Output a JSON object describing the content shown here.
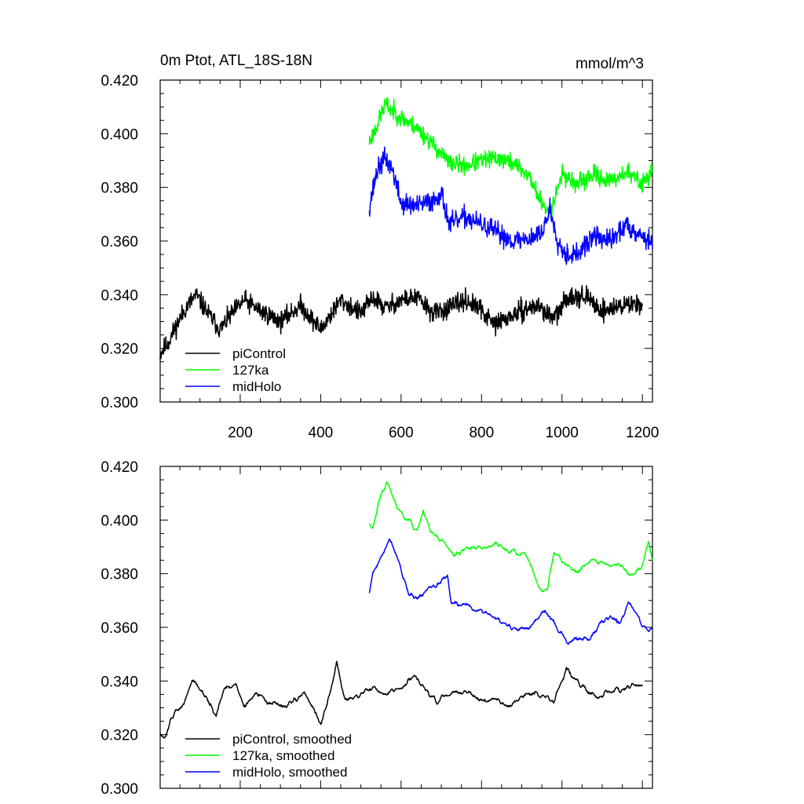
{
  "figure": {
    "top_title_left": "0m Ptot, ATL_18S-18N",
    "top_title_right": "mmol/m^3"
  },
  "chart_data": [
    {
      "type": "line",
      "panel": "top",
      "title": "0m Ptot, ATL_18S-18N",
      "units": "mmol/m^3",
      "xlim": [
        1,
        1225
      ],
      "ylim": [
        0.3,
        0.42
      ],
      "yticks": [
        "0.420",
        "0.400",
        "0.380",
        "0.360",
        "0.340",
        "0.320",
        "0.300"
      ],
      "xticks": [
        "200",
        "400",
        "600",
        "800",
        "1000",
        "1200"
      ],
      "legend_position": "bottom-left",
      "series": [
        {
          "name": "piControl",
          "color": "#000000",
          "x_start": 1,
          "x_end": 1200,
          "anchors": [
            [
              1,
              0.318
            ],
            [
              20,
              0.322
            ],
            [
              60,
              0.334
            ],
            [
              90,
              0.34
            ],
            [
              120,
              0.333
            ],
            [
              150,
              0.327
            ],
            [
              180,
              0.333
            ],
            [
              210,
              0.338
            ],
            [
              250,
              0.334
            ],
            [
              300,
              0.33
            ],
            [
              350,
              0.336
            ],
            [
              400,
              0.327
            ],
            [
              450,
              0.338
            ],
            [
              500,
              0.333
            ],
            [
              530,
              0.339
            ],
            [
              560,
              0.335
            ],
            [
              600,
              0.338
            ],
            [
              640,
              0.339
            ],
            [
              680,
              0.333
            ],
            [
              720,
              0.335
            ],
            [
              760,
              0.338
            ],
            [
              800,
              0.334
            ],
            [
              830,
              0.329
            ],
            [
              860,
              0.331
            ],
            [
              900,
              0.334
            ],
            [
              940,
              0.336
            ],
            [
              980,
              0.331
            ],
            [
              1020,
              0.34
            ],
            [
              1060,
              0.339
            ],
            [
              1100,
              0.334
            ],
            [
              1150,
              0.336
            ],
            [
              1200,
              0.337
            ]
          ],
          "noise": 0.0055,
          "smooth": 1,
          "seed": 11
        },
        {
          "name": "127ka",
          "color": "#00ff00",
          "x_start": 521,
          "x_end": 1225,
          "anchors": [
            [
              521,
              0.397
            ],
            [
              540,
              0.403
            ],
            [
              560,
              0.411
            ],
            [
              600,
              0.406
            ],
            [
              640,
              0.402
            ],
            [
              680,
              0.396
            ],
            [
              720,
              0.389
            ],
            [
              760,
              0.388
            ],
            [
              800,
              0.39
            ],
            [
              840,
              0.391
            ],
            [
              880,
              0.389
            ],
            [
              920,
              0.384
            ],
            [
              940,
              0.377
            ],
            [
              960,
              0.371
            ],
            [
              975,
              0.373
            ],
            [
              1000,
              0.385
            ],
            [
              1040,
              0.381
            ],
            [
              1080,
              0.385
            ],
            [
              1120,
              0.382
            ],
            [
              1160,
              0.386
            ],
            [
              1200,
              0.381
            ],
            [
              1225,
              0.387
            ]
          ],
          "noise": 0.005,
          "smooth": 1,
          "seed": 23
        },
        {
          "name": "midHolo",
          "color": "#0000ff",
          "x_start": 521,
          "x_end": 1225,
          "anchors": [
            [
              521,
              0.373
            ],
            [
              540,
              0.386
            ],
            [
              560,
              0.391
            ],
            [
              580,
              0.386
            ],
            [
              600,
              0.374
            ],
            [
              640,
              0.373
            ],
            [
              680,
              0.375
            ],
            [
              700,
              0.378
            ],
            [
              720,
              0.366
            ],
            [
              760,
              0.369
            ],
            [
              800,
              0.366
            ],
            [
              840,
              0.363
            ],
            [
              880,
              0.36
            ],
            [
              920,
              0.361
            ],
            [
              950,
              0.363
            ],
            [
              970,
              0.372
            ],
            [
              990,
              0.36
            ],
            [
              1010,
              0.355
            ],
            [
              1040,
              0.355
            ],
            [
              1080,
              0.362
            ],
            [
              1120,
              0.36
            ],
            [
              1160,
              0.366
            ],
            [
              1200,
              0.362
            ],
            [
              1225,
              0.359
            ]
          ],
          "noise": 0.0058,
          "smooth": 1,
          "seed": 37
        }
      ]
    },
    {
      "type": "line",
      "panel": "bottom",
      "xlim": [
        1,
        1225
      ],
      "ylim": [
        0.3,
        0.42
      ],
      "yticks": [
        "0.420",
        "0.400",
        "0.380",
        "0.360",
        "0.340",
        "0.320",
        "0.300"
      ],
      "legend_position": "bottom-left",
      "series": [
        {
          "name": "piControl, smoothed",
          "color": "#000000",
          "x_start": 1,
          "x_end": 1200,
          "anchors": [
            [
              1,
              0.32
            ],
            [
              10,
              0.318
            ],
            [
              30,
              0.327
            ],
            [
              60,
              0.331
            ],
            [
              80,
              0.341
            ],
            [
              100,
              0.337
            ],
            [
              120,
              0.333
            ],
            [
              140,
              0.327
            ],
            [
              160,
              0.337
            ],
            [
              190,
              0.339
            ],
            [
              210,
              0.33
            ],
            [
              240,
              0.335
            ],
            [
              280,
              0.331
            ],
            [
              310,
              0.331
            ],
            [
              340,
              0.333
            ],
            [
              360,
              0.336
            ],
            [
              380,
              0.33
            ],
            [
              400,
              0.324
            ],
            [
              420,
              0.333
            ],
            [
              440,
              0.347
            ],
            [
              460,
              0.333
            ],
            [
              490,
              0.334
            ],
            [
              530,
              0.338
            ],
            [
              560,
              0.335
            ],
            [
              600,
              0.337
            ],
            [
              630,
              0.342
            ],
            [
              660,
              0.337
            ],
            [
              690,
              0.332
            ],
            [
              720,
              0.335
            ],
            [
              760,
              0.336
            ],
            [
              800,
              0.333
            ],
            [
              840,
              0.333
            ],
            [
              870,
              0.33
            ],
            [
              900,
              0.334
            ],
            [
              940,
              0.336
            ],
            [
              980,
              0.332
            ],
            [
              1010,
              0.344
            ],
            [
              1040,
              0.34
            ],
            [
              1080,
              0.334
            ],
            [
              1120,
              0.336
            ],
            [
              1160,
              0.337
            ],
            [
              1200,
              0.339
            ]
          ],
          "noise": 0.0022,
          "smooth": 3,
          "seed": 51
        },
        {
          "name": "127ka, smoothed",
          "color": "#00ff00",
          "x_start": 521,
          "x_end": 1225,
          "anchors": [
            [
              521,
              0.398
            ],
            [
              530,
              0.397
            ],
            [
              545,
              0.408
            ],
            [
              565,
              0.414
            ],
            [
              590,
              0.405
            ],
            [
              610,
              0.401
            ],
            [
              625,
              0.4
            ],
            [
              640,
              0.396
            ],
            [
              655,
              0.404
            ],
            [
              670,
              0.397
            ],
            [
              690,
              0.394
            ],
            [
              710,
              0.391
            ],
            [
              730,
              0.387
            ],
            [
              760,
              0.389
            ],
            [
              800,
              0.39
            ],
            [
              840,
              0.391
            ],
            [
              870,
              0.388
            ],
            [
              900,
              0.388
            ],
            [
              920,
              0.384
            ],
            [
              935,
              0.378
            ],
            [
              950,
              0.373
            ],
            [
              965,
              0.375
            ],
            [
              980,
              0.388
            ],
            [
              1000,
              0.385
            ],
            [
              1040,
              0.381
            ],
            [
              1080,
              0.386
            ],
            [
              1100,
              0.384
            ],
            [
              1120,
              0.383
            ],
            [
              1140,
              0.384
            ],
            [
              1170,
              0.379
            ],
            [
              1200,
              0.383
            ],
            [
              1215,
              0.392
            ],
            [
              1225,
              0.385
            ]
          ],
          "noise": 0.002,
          "smooth": 3,
          "seed": 63
        },
        {
          "name": "midHolo, smoothed",
          "color": "#0000ff",
          "x_start": 521,
          "x_end": 1225,
          "anchors": [
            [
              521,
              0.373
            ],
            [
              530,
              0.381
            ],
            [
              550,
              0.386
            ],
            [
              570,
              0.393
            ],
            [
              590,
              0.387
            ],
            [
              605,
              0.378
            ],
            [
              620,
              0.373
            ],
            [
              640,
              0.371
            ],
            [
              665,
              0.374
            ],
            [
              690,
              0.376
            ],
            [
              715,
              0.379
            ],
            [
              725,
              0.369
            ],
            [
              760,
              0.368
            ],
            [
              800,
              0.366
            ],
            [
              840,
              0.363
            ],
            [
              880,
              0.359
            ],
            [
              920,
              0.36
            ],
            [
              955,
              0.366
            ],
            [
              975,
              0.363
            ],
            [
              995,
              0.358
            ],
            [
              1015,
              0.354
            ],
            [
              1040,
              0.356
            ],
            [
              1070,
              0.356
            ],
            [
              1100,
              0.362
            ],
            [
              1120,
              0.364
            ],
            [
              1145,
              0.362
            ],
            [
              1165,
              0.369
            ],
            [
              1185,
              0.366
            ],
            [
              1200,
              0.361
            ],
            [
              1210,
              0.359
            ],
            [
              1225,
              0.359
            ]
          ],
          "noise": 0.0022,
          "smooth": 3,
          "seed": 79
        }
      ]
    }
  ]
}
